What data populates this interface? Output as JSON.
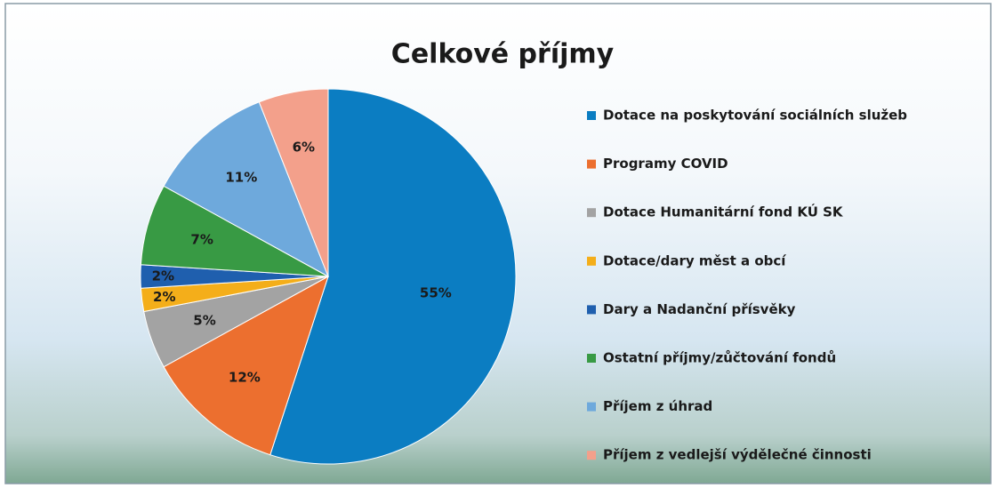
{
  "chart_data": {
    "type": "pie",
    "title": "Celkové příjmy",
    "categories": [
      "Dotace na poskytování sociálních služeb",
      "Programy COVID",
      "Dotace Humanitární fond KÚ SK",
      "Dotace/dary měst a obcí",
      "Dary a Nadanční přísvěky",
      "Ostatní příjmy/zůčtování fondů",
      "Příjem z úhrad",
      "Příjem z vedlejší výdělečné činnosti"
    ],
    "values": [
      55,
      12,
      5,
      2,
      2,
      7,
      11,
      6
    ],
    "value_labels": [
      "55%",
      "12%",
      "5%",
      "2%",
      "2%",
      "7%",
      "11%",
      "6%"
    ],
    "colors": [
      "#0b7dc2",
      "#ec6f2f",
      "#a3a3a3",
      "#f4ae1a",
      "#1f5fae",
      "#389a44",
      "#6ea9dc",
      "#f3a08b"
    ],
    "legend": "right"
  }
}
